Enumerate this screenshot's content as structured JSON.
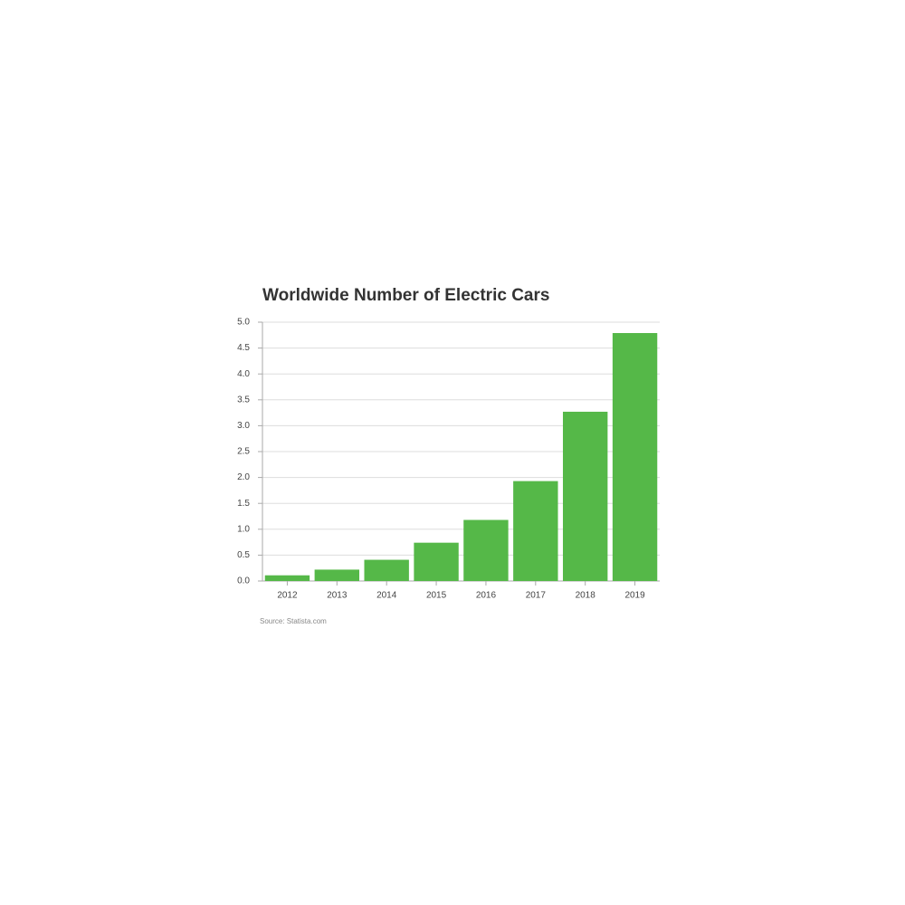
{
  "chart_data": {
    "type": "bar",
    "title": "Worldwide Number of Electric Cars",
    "source": "Source: Statista.com",
    "categories": [
      "2012",
      "2013",
      "2014",
      "2015",
      "2016",
      "2017",
      "2018",
      "2019"
    ],
    "values": [
      0.11,
      0.22,
      0.41,
      0.74,
      1.18,
      1.93,
      3.27,
      4.79
    ],
    "color": "#55b848",
    "ylim": [
      0,
      5
    ],
    "yticks": [
      {
        "value": 0,
        "label": "0.0"
      },
      0.5,
      {
        "value": 1,
        "label": "1.0"
      },
      1.5,
      {
        "value": 2,
        "label": "2.0"
      },
      2.5,
      {
        "value": 3,
        "label": "3.0"
      },
      3.5,
      {
        "value": 4,
        "label": "4.0"
      },
      4.5,
      {
        "value": 5,
        "label": "5.0"
      }
    ],
    "grid": true
  }
}
